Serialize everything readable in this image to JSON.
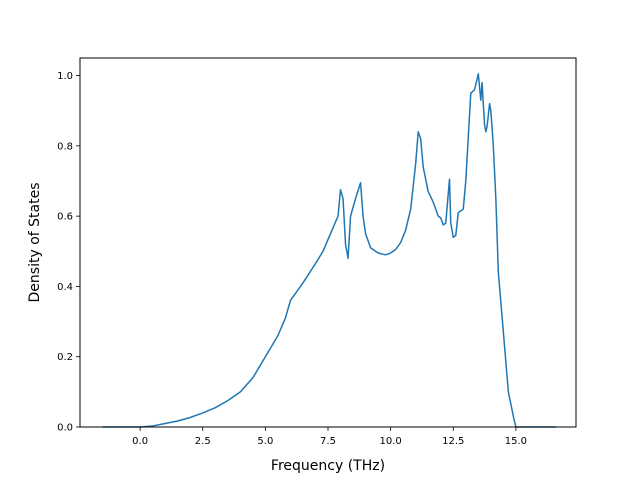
{
  "chart_data": {
    "type": "line",
    "title": "",
    "xlabel": "Frequency (THz)",
    "ylabel": "Density of States",
    "xlim": [
      -2.4,
      17.4
    ],
    "ylim": [
      0.0,
      1.05
    ],
    "xticks": [
      0.0,
      2.5,
      5.0,
      7.5,
      10.0,
      12.5,
      15.0
    ],
    "xtick_labels": [
      "0.0",
      "2.5",
      "5.0",
      "7.5",
      "10.0",
      "12.5",
      "15.0"
    ],
    "yticks": [
      0.0,
      0.2,
      0.4,
      0.6,
      0.8,
      1.0
    ],
    "ytick_labels": [
      "0.0",
      "0.2",
      "0.4",
      "0.6",
      "0.8",
      "1.0"
    ],
    "grid": false,
    "line_color": "#1f77b4",
    "series": [
      {
        "x": [
          -1.5,
          -0.5,
          0.0,
          0.5,
          1.0,
          1.5,
          2.0,
          2.5,
          3.0,
          3.5,
          4.0,
          4.5,
          5.0,
          5.5,
          5.8,
          6.0,
          6.5,
          7.0,
          7.3,
          7.6,
          7.9,
          8.0,
          8.1,
          8.2,
          8.3,
          8.4,
          8.6,
          8.8,
          8.9,
          9.0,
          9.2,
          9.5,
          9.8,
          10.0,
          10.2,
          10.4,
          10.6,
          10.8,
          11.0,
          11.1,
          11.2,
          11.3,
          11.5,
          11.7,
          11.9,
          12.0,
          12.1,
          12.2,
          12.35,
          12.4,
          12.5,
          12.6,
          12.7,
          12.9,
          13.0,
          13.2,
          13.35,
          13.5,
          13.6,
          13.65,
          13.75,
          13.8,
          13.85,
          13.95,
          14.0,
          14.1,
          14.2,
          14.3,
          14.5,
          14.7,
          14.9,
          15.0,
          15.05,
          15.5,
          16.0,
          16.6
        ],
        "y": [
          0.0,
          0.0,
          0.0,
          0.003,
          0.01,
          0.017,
          0.027,
          0.04,
          0.055,
          0.075,
          0.1,
          0.14,
          0.2,
          0.26,
          0.31,
          0.36,
          0.41,
          0.465,
          0.5,
          0.55,
          0.6,
          0.675,
          0.65,
          0.52,
          0.48,
          0.6,
          0.65,
          0.695,
          0.6,
          0.55,
          0.51,
          0.495,
          0.49,
          0.495,
          0.505,
          0.525,
          0.56,
          0.62,
          0.75,
          0.84,
          0.82,
          0.74,
          0.67,
          0.64,
          0.6,
          0.595,
          0.575,
          0.58,
          0.705,
          0.58,
          0.54,
          0.545,
          0.61,
          0.62,
          0.7,
          0.95,
          0.96,
          1.005,
          0.93,
          0.98,
          0.86,
          0.84,
          0.855,
          0.92,
          0.9,
          0.8,
          0.65,
          0.44,
          0.27,
          0.1,
          0.03,
          0.0,
          0.0,
          0.0,
          0.0,
          0.0
        ]
      }
    ]
  }
}
